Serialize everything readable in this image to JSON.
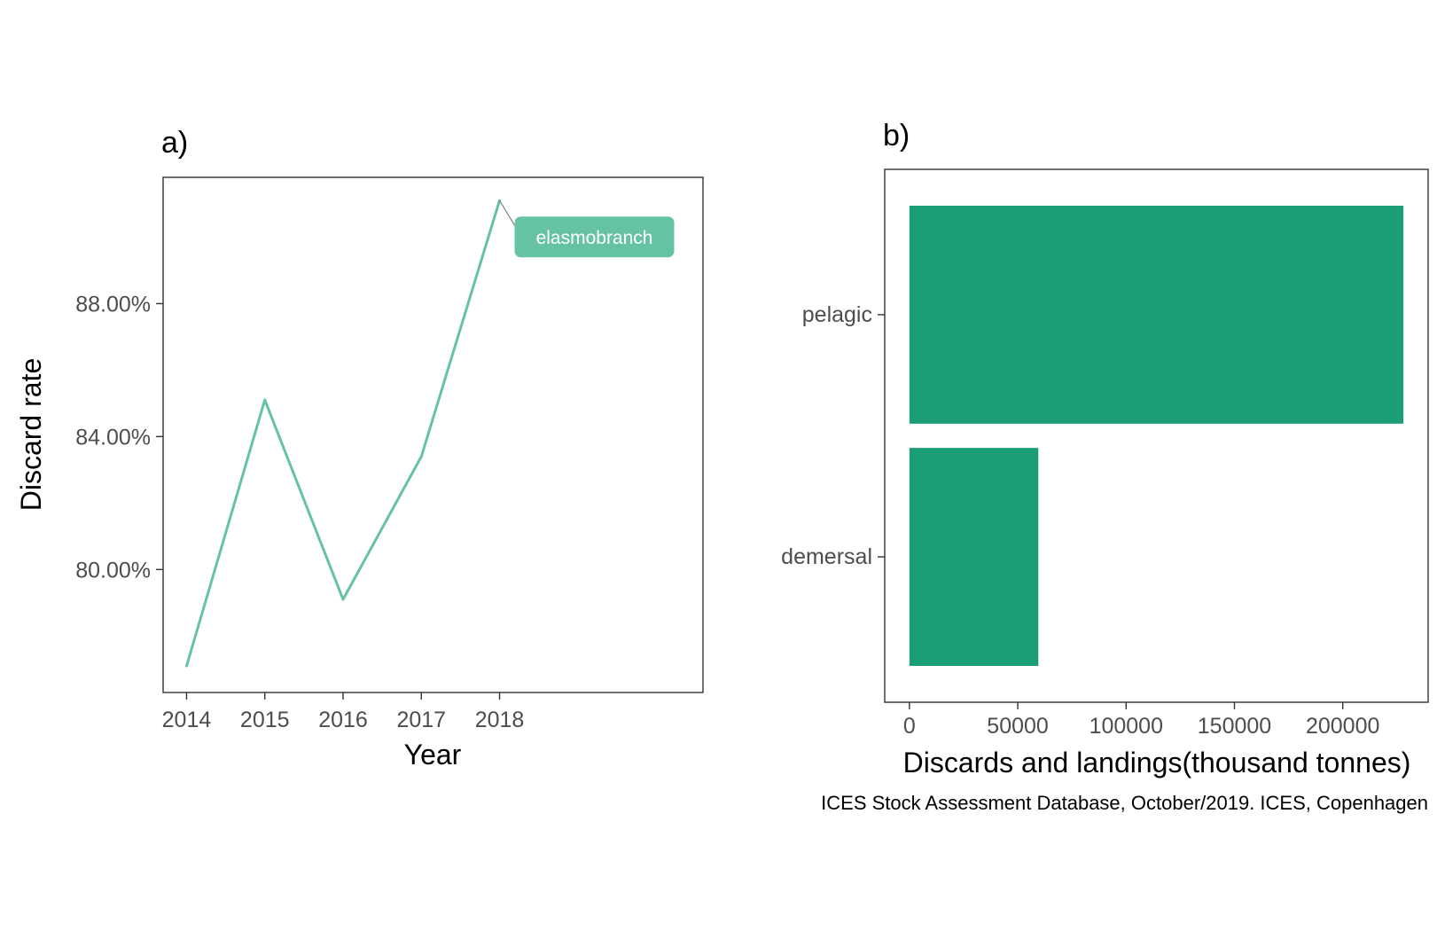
{
  "chart_data": [
    {
      "type": "line",
      "panel_tag": "a)",
      "xlabel": "Year",
      "ylabel": "Discard rate",
      "x": [
        2014,
        2015,
        2016,
        2017,
        2018
      ],
      "x_tick_labels": [
        "2014",
        "2015",
        "2016",
        "2017",
        "2018"
      ],
      "xlim": [
        2013.7,
        2020.6
      ],
      "y_ticks": [
        80,
        84,
        88
      ],
      "y_tick_labels": [
        "80.00%",
        "84.00%",
        "88.00%"
      ],
      "ylim": [
        76.3,
        91.8
      ],
      "grid": false,
      "series": [
        {
          "name": "elasmobranch",
          "values": [
            77.1,
            85.1,
            79.1,
            83.4,
            91.1
          ],
          "color": "#66c2a5"
        }
      ]
    },
    {
      "type": "bar",
      "orientation": "horizontal",
      "panel_tag": "b)",
      "xlabel": "Discards and landings(thousand tonnes)",
      "ylabel": "",
      "categories": [
        "pelagic",
        "demersal"
      ],
      "values": [
        228000,
        59500
      ],
      "color": "#1b9e77",
      "x_ticks": [
        0,
        50000,
        100000,
        150000,
        200000
      ],
      "x_tick_labels": [
        "0",
        "50000",
        "100000",
        "150000",
        "200000"
      ],
      "xlim": [
        -11400,
        239400
      ],
      "grid": false,
      "caption": "ICES Stock Assessment Database, October/2019. ICES, Copenhagen"
    }
  ]
}
